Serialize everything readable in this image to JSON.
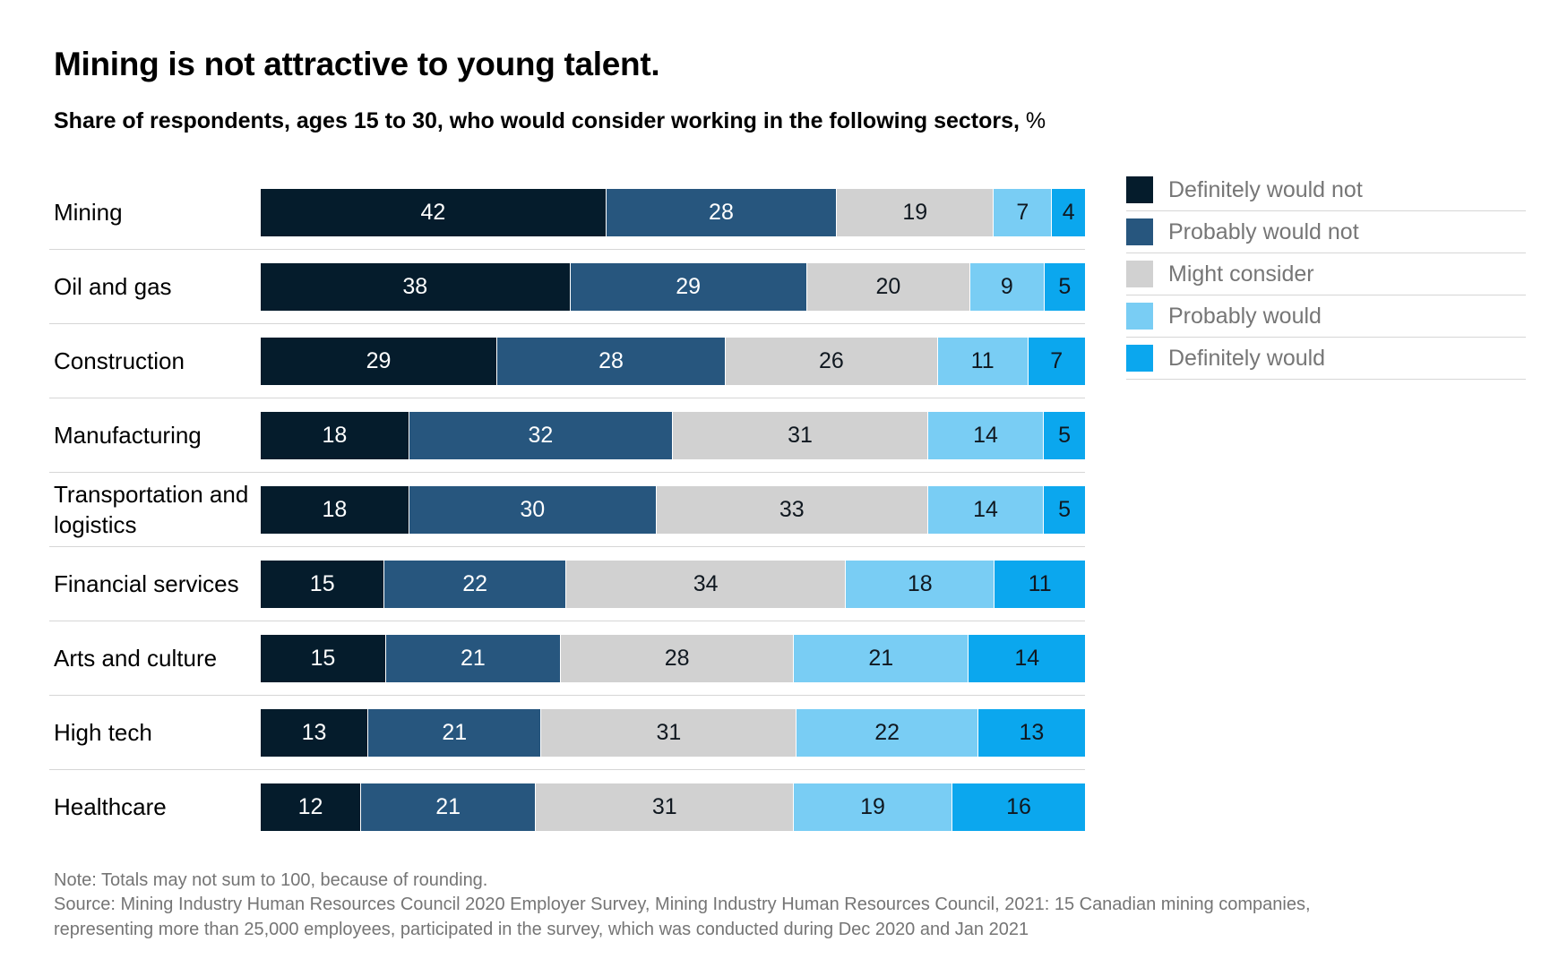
{
  "header": {
    "title": "Mining is not attractive to young talent.",
    "subtitle": "Share of respondents, ages 15 to 30, who would consider working in the following sectors,",
    "unit": "%"
  },
  "chart_data": {
    "type": "bar",
    "orientation": "horizontal",
    "stacked": true,
    "title": "Mining is not attractive to young talent.",
    "subtitle": "Share of respondents, ages 15 to 30, who would consider working in the following sectors, %",
    "xlim": [
      0,
      100
    ],
    "grid": false,
    "legend_position": "right",
    "value_labels": "inside",
    "categories": [
      "Mining",
      "Oil and gas",
      "Construction",
      "Manufacturing",
      "Transportation and logistics",
      "Financial services",
      "Arts and culture",
      "High tech",
      "Healthcare"
    ],
    "series": [
      {
        "name": "Definitely would not",
        "color": "#051c2c",
        "text_color": "#ffffff",
        "values": [
          42,
          38,
          29,
          18,
          18,
          15,
          15,
          13,
          12
        ]
      },
      {
        "name": "Probably would not",
        "color": "#27567e",
        "text_color": "#ffffff",
        "values": [
          28,
          29,
          28,
          32,
          30,
          22,
          21,
          21,
          21
        ]
      },
      {
        "name": "Might consider",
        "color": "#d1d1d1",
        "text_color": "#101820",
        "values": [
          19,
          20,
          26,
          31,
          33,
          34,
          28,
          31,
          31
        ]
      },
      {
        "name": "Probably would",
        "color": "#79cdf4",
        "text_color": "#101820",
        "values": [
          7,
          9,
          11,
          14,
          14,
          18,
          21,
          22,
          19
        ]
      },
      {
        "name": "Definitely would",
        "color": "#0ba7ee",
        "text_color": "#101820",
        "values": [
          4,
          5,
          7,
          5,
          5,
          11,
          14,
          13,
          16
        ]
      }
    ]
  },
  "footnotes": {
    "note": "Note: Totals may not sum to 100, because of rounding.",
    "source": "Source: Mining Industry Human Resources Council 2020 Employer Survey, Mining Industry Human Resources Council, 2021: 15 Canadian mining companies, representing more than 25,000 employees, participated in the survey, which was conducted during Dec 2020 and Jan 2021"
  }
}
